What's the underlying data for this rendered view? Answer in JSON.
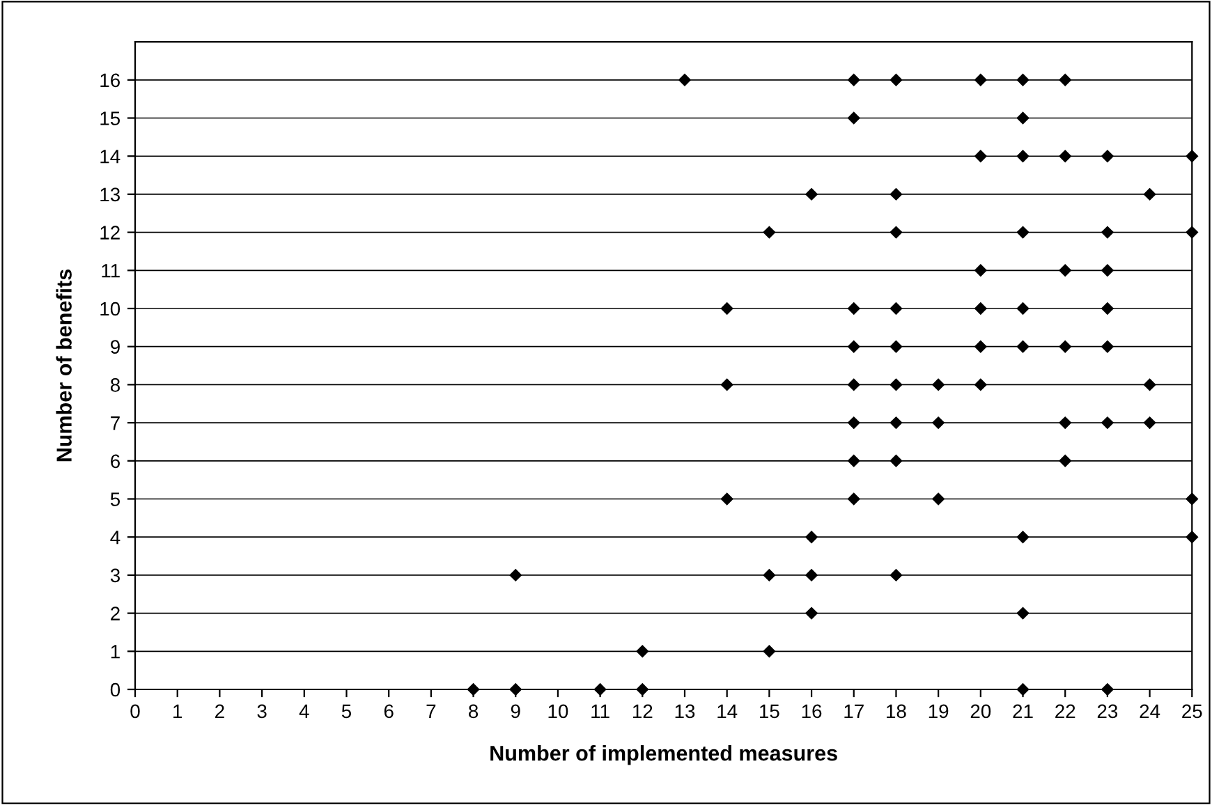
{
  "chart_data": {
    "type": "scatter",
    "xlabel": "Number of implemented measures",
    "ylabel": "Number of benefits",
    "xlim": [
      0,
      25
    ],
    "xticks": [
      0,
      1,
      2,
      3,
      4,
      5,
      6,
      7,
      8,
      9,
      10,
      11,
      12,
      13,
      14,
      15,
      16,
      17,
      18,
      19,
      20,
      21,
      22,
      23,
      24,
      25
    ],
    "ylim": [
      0,
      17
    ],
    "yticks": [
      0,
      1,
      2,
      3,
      4,
      5,
      6,
      7,
      8,
      9,
      10,
      11,
      12,
      13,
      14,
      15,
      16
    ],
    "grid": "y",
    "marker": "diamond",
    "series": [
      {
        "color": "#000000",
        "x": [
          13,
          17,
          18,
          20,
          21,
          22,
          17,
          21,
          20,
          21,
          22,
          23,
          25,
          16,
          18,
          24,
          15,
          18,
          21,
          23,
          25,
          20,
          22,
          23,
          14,
          17,
          18,
          20,
          21,
          23,
          17,
          18,
          20,
          21,
          22,
          23,
          14,
          17,
          18,
          19,
          20,
          24,
          17,
          18,
          19,
          22,
          23,
          24,
          17,
          18,
          22,
          14,
          17,
          19,
          25,
          16,
          21,
          25,
          9,
          15,
          16,
          18,
          16,
          21,
          12,
          15,
          8,
          9,
          11,
          12,
          21,
          23
        ],
        "values": [
          16,
          16,
          16,
          16,
          16,
          16,
          15,
          15,
          14,
          14,
          14,
          14,
          14,
          13,
          13,
          13,
          12,
          12,
          12,
          12,
          12,
          11,
          11,
          11,
          10,
          10,
          10,
          10,
          10,
          10,
          9,
          9,
          9,
          9,
          9,
          9,
          8,
          8,
          8,
          8,
          8,
          8,
          7,
          7,
          7,
          7,
          7,
          7,
          6,
          6,
          6,
          5,
          5,
          5,
          5,
          4,
          4,
          4,
          3,
          3,
          3,
          3,
          2,
          2,
          1,
          1,
          0,
          0,
          0,
          0,
          0,
          0
        ]
      }
    ]
  }
}
